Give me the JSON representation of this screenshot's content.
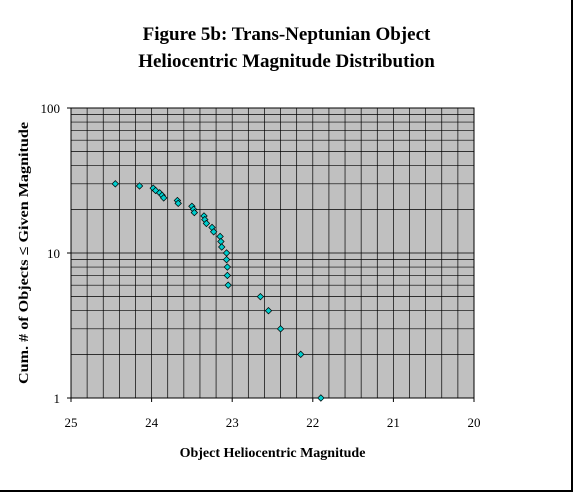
{
  "chart_data": {
    "type": "scatter",
    "title": [
      "Figure 5b:  Trans-Neptunian Object",
      "Heliocentric Magnitude Distribution"
    ],
    "xlabel": "Object Heliocentric Magnitude",
    "ylabel": "Cum. # of Objects ≤ Given Magnitude",
    "xlim": [
      25,
      20
    ],
    "x_reversed": true,
    "ylim": [
      1,
      100
    ],
    "y_scale": "log",
    "x_ticks": [
      "25",
      "24",
      "23",
      "22",
      "21",
      "20"
    ],
    "y_ticks": [
      "1",
      "10",
      "100"
    ],
    "grid": true,
    "plot_background": "#c0c0c0",
    "marker": {
      "shape": "diamond",
      "color": "#00cccc",
      "edge_color": "#000000"
    },
    "points": [
      {
        "x": 24.45,
        "y": 30
      },
      {
        "x": 24.15,
        "y": 29
      },
      {
        "x": 23.98,
        "y": 28
      },
      {
        "x": 23.95,
        "y": 27
      },
      {
        "x": 23.9,
        "y": 26
      },
      {
        "x": 23.87,
        "y": 25
      },
      {
        "x": 23.85,
        "y": 24
      },
      {
        "x": 23.68,
        "y": 23
      },
      {
        "x": 23.67,
        "y": 22
      },
      {
        "x": 23.5,
        "y": 21
      },
      {
        "x": 23.48,
        "y": 20
      },
      {
        "x": 23.47,
        "y": 19
      },
      {
        "x": 23.35,
        "y": 18
      },
      {
        "x": 23.34,
        "y": 17
      },
      {
        "x": 23.32,
        "y": 16
      },
      {
        "x": 23.25,
        "y": 15
      },
      {
        "x": 23.23,
        "y": 14
      },
      {
        "x": 23.15,
        "y": 13
      },
      {
        "x": 23.14,
        "y": 12
      },
      {
        "x": 23.13,
        "y": 11
      },
      {
        "x": 23.07,
        "y": 10
      },
      {
        "x": 23.07,
        "y": 9
      },
      {
        "x": 23.06,
        "y": 8
      },
      {
        "x": 23.06,
        "y": 7
      },
      {
        "x": 23.05,
        "y": 6
      },
      {
        "x": 22.65,
        "y": 5
      },
      {
        "x": 22.55,
        "y": 4
      },
      {
        "x": 22.4,
        "y": 3
      },
      {
        "x": 22.15,
        "y": 2
      },
      {
        "x": 21.9,
        "y": 1
      }
    ]
  }
}
